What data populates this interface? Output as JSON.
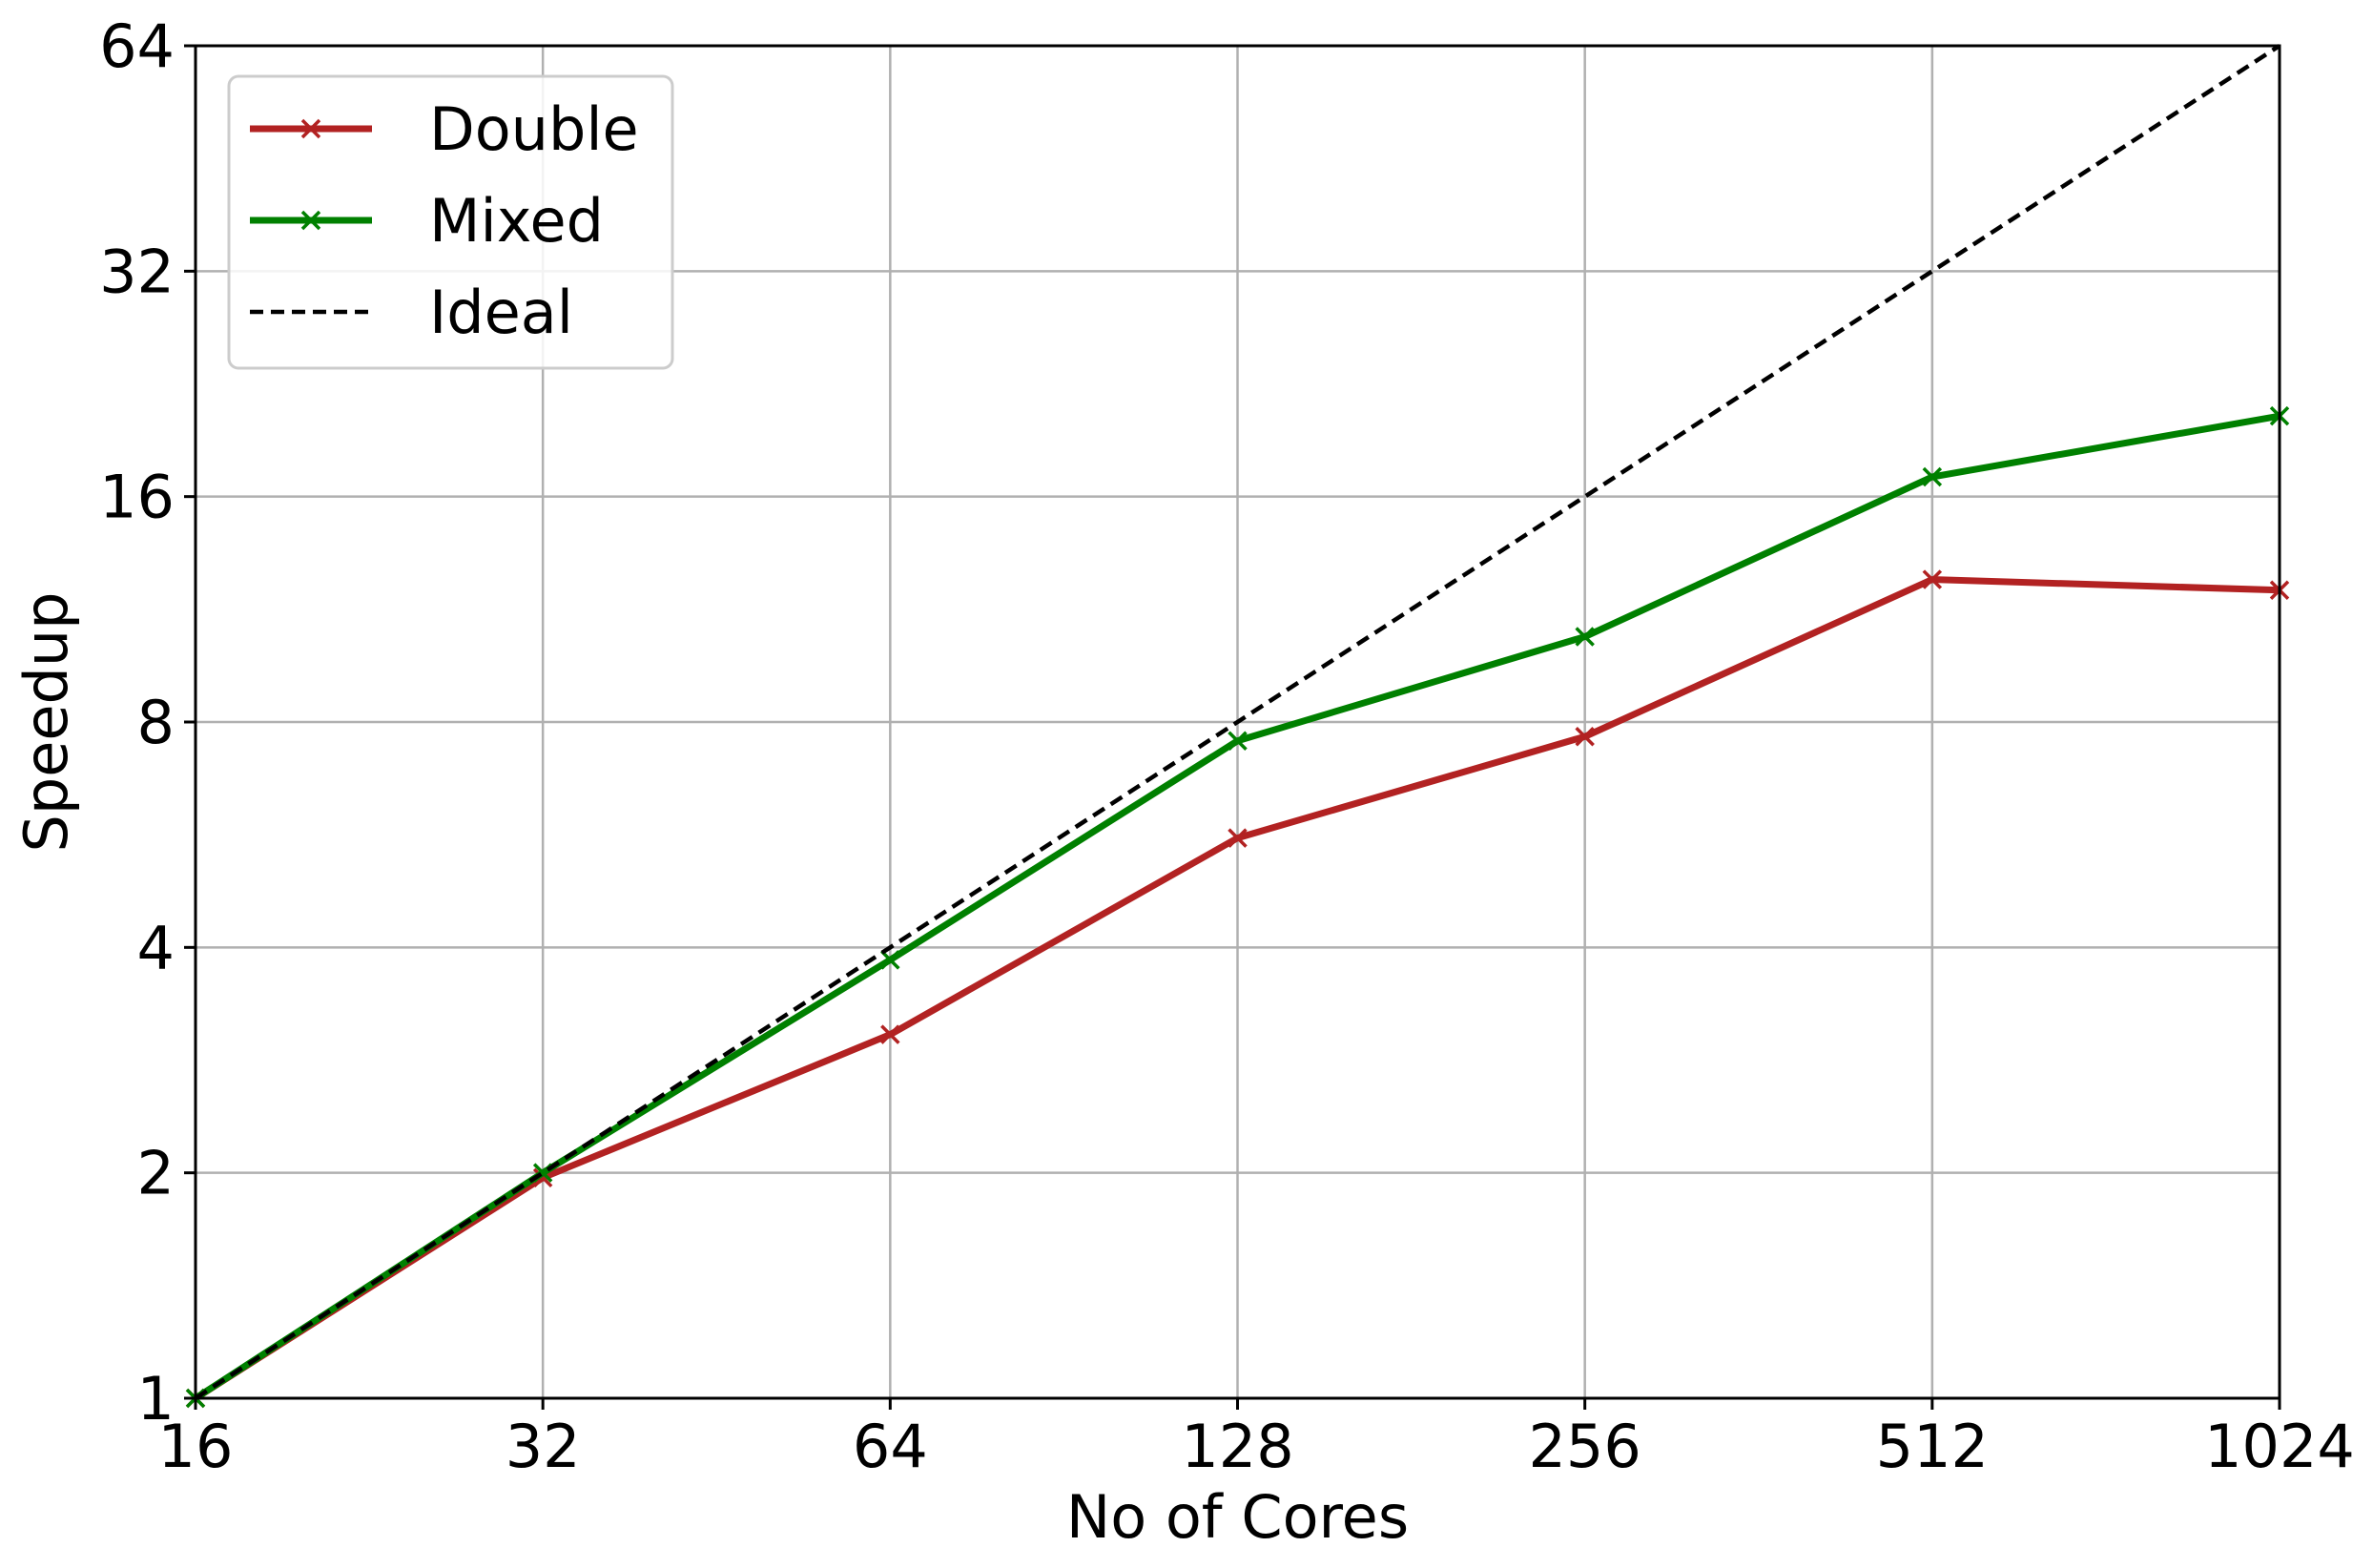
{
  "chart_data": {
    "type": "line",
    "title": "",
    "xlabel": "No of Cores",
    "ylabel": "Speedup",
    "xscale": "log2",
    "yscale": "log2",
    "xlim": [
      16,
      1024
    ],
    "ylim": [
      1,
      64
    ],
    "xticks": [
      16,
      32,
      64,
      128,
      256,
      512,
      1024
    ],
    "xtick_labels": [
      "16",
      "32",
      "64",
      "128",
      "256",
      "512",
      "1024"
    ],
    "yticks": [
      1,
      2,
      4,
      8,
      16,
      32,
      64
    ],
    "ytick_labels": [
      "1",
      "2",
      "4",
      "8",
      "16",
      "32",
      "64"
    ],
    "grid": true,
    "legend_position": "top-left",
    "x": [
      16,
      32,
      64,
      128,
      256,
      512,
      1024
    ],
    "series": [
      {
        "name": "Double",
        "color": "#b22222",
        "style": "solid",
        "marker": "x",
        "values": [
          1,
          1.97,
          3.06,
          5.6,
          7.65,
          12.4,
          12.0
        ]
      },
      {
        "name": "Mixed",
        "color": "#008000",
        "style": "solid",
        "marker": "x",
        "values": [
          1,
          2.0,
          3.85,
          7.55,
          10.4,
          17.0,
          20.5
        ]
      },
      {
        "name": "Ideal",
        "color": "#000000",
        "style": "dashed",
        "marker": "none",
        "values": [
          1,
          2,
          4,
          8,
          16,
          32,
          64
        ]
      }
    ]
  }
}
